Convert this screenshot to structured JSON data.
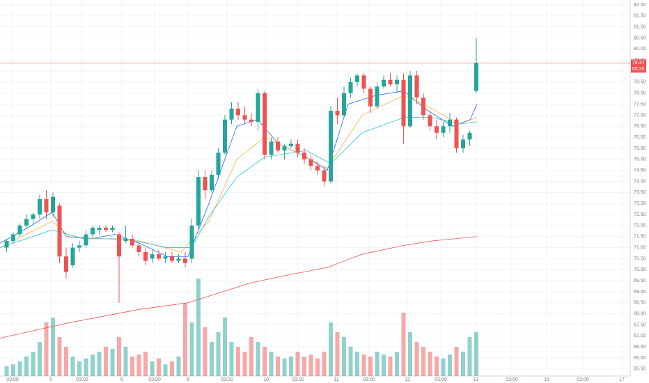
{
  "chart_data": {
    "type": "candlestick",
    "xlim": [
      0,
      905
    ],
    "ylim": [
      65.18,
      82.22
    ],
    "yticks": [
      {
        "value": 82,
        "label": "82.00"
      },
      {
        "value": 81.5,
        "label": "81.50"
      },
      {
        "value": 81,
        "label": "81.00"
      },
      {
        "value": 80.5,
        "label": "80.50"
      },
      {
        "value": 80,
        "label": "80.00"
      },
      {
        "value": 79.5,
        "label": "79.50"
      },
      {
        "value": 79,
        "label": "79.00"
      },
      {
        "value": 78.5,
        "label": "78.50"
      },
      {
        "value": 78,
        "label": "78.00"
      },
      {
        "value": 77.5,
        "label": "77.50"
      },
      {
        "value": 77,
        "label": "77.00"
      },
      {
        "value": 76.5,
        "label": "76.50"
      },
      {
        "value": 76,
        "label": "76.00"
      },
      {
        "value": 75.5,
        "label": "75.50"
      },
      {
        "value": 75,
        "label": "75.00"
      },
      {
        "value": 74.5,
        "label": "74.50"
      },
      {
        "value": 74,
        "label": "74.00"
      },
      {
        "value": 73.5,
        "label": "73.50"
      },
      {
        "value": 73,
        "label": "73.00"
      },
      {
        "value": 72.5,
        "label": "72.50"
      },
      {
        "value": 72,
        "label": "72.00"
      },
      {
        "value": 71.5,
        "label": "71.50"
      },
      {
        "value": 71,
        "label": "71.00"
      },
      {
        "value": 70.5,
        "label": "70.50"
      },
      {
        "value": 70,
        "label": "70.00"
      },
      {
        "value": 69.5,
        "label": "69.50"
      },
      {
        "value": 69,
        "label": "69.00"
      },
      {
        "value": 68.5,
        "label": "68.50"
      },
      {
        "value": 68,
        "label": "68.00"
      },
      {
        "value": 67.5,
        "label": "67.50"
      },
      {
        "value": 67,
        "label": "67.00"
      },
      {
        "value": 66.5,
        "label": "66.50"
      },
      {
        "value": 66,
        "label": "66.00"
      },
      {
        "value": 65.5,
        "label": "65.50"
      }
    ],
    "xticks": [
      {
        "value": 18,
        "label": "03:00"
      },
      {
        "value": 73,
        "label": "5"
      },
      {
        "value": 118,
        "label": "03:00"
      },
      {
        "value": 175,
        "label": "6"
      },
      {
        "value": 222,
        "label": "03:00"
      },
      {
        "value": 270,
        "label": "8"
      },
      {
        "value": 326,
        "label": "03:00"
      },
      {
        "value": 382,
        "label": "10"
      },
      {
        "value": 428,
        "label": "03:00"
      },
      {
        "value": 483,
        "label": "11"
      },
      {
        "value": 530,
        "label": "03:00"
      },
      {
        "value": 585,
        "label": "12"
      },
      {
        "value": 633,
        "label": "03:00"
      },
      {
        "value": 683,
        "label": "13"
      },
      {
        "value": 735,
        "label": "03:00"
      },
      {
        "value": 785,
        "label": "15"
      },
      {
        "value": 837,
        "label": "03:00"
      },
      {
        "value": 893,
        "label": "17"
      }
    ],
    "grid": true,
    "up_color": "#26a69a",
    "down_color": "#ef5350",
    "volume_lim": [
      0,
      100
    ],
    "x": [
      9.5,
      19,
      28.5,
      38,
      47.5,
      57,
      66.5,
      76,
      85.5,
      95,
      104.5,
      114,
      123.5,
      133,
      142.5,
      152,
      161.5,
      171,
      180.5,
      190,
      199.5,
      209,
      218.5,
      228,
      237.5,
      247,
      256.5,
      266,
      275.5,
      285,
      294.5,
      304,
      313.5,
      323,
      332.5,
      342,
      351.5,
      361,
      370.5,
      380,
      389.5,
      399,
      408.5,
      418,
      427.5,
      437,
      446.5,
      456,
      465.5,
      475,
      484.5,
      494,
      503.5,
      513,
      522.5,
      532,
      541.5,
      551,
      560.5,
      570,
      579.5,
      589,
      598.5,
      608,
      617.5,
      627,
      636.5,
      646,
      655.5,
      665,
      674.5,
      684
    ],
    "open": [
      71.0,
      71.3,
      71.6,
      72.0,
      72.3,
      72.5,
      73.2,
      72.6,
      72.9,
      70.6,
      70.2,
      71.0,
      71.1,
      71.6,
      71.8,
      71.9,
      71.8,
      71.6,
      71.3,
      71.4,
      71.1,
      70.8,
      70.5,
      70.7,
      70.5,
      70.6,
      70.4,
      70.5,
      70.5,
      72.0,
      74.2,
      73.6,
      74.3,
      75.3,
      76.8,
      77.3,
      77.0,
      76.8,
      76.7,
      78.0,
      75.2,
      75.8,
      75.4,
      75.6,
      75.7,
      75.3,
      75.0,
      74.7,
      74.5,
      74.0,
      77.2,
      77.0,
      78.0,
      78.5,
      78.8,
      78.2,
      77.4,
      78.3,
      78.6,
      78.4,
      78.6,
      76.5,
      78.8,
      77.8,
      77.0,
      76.5,
      76.2,
      76.5,
      76.8,
      75.5,
      75.9,
      78.1
    ],
    "high": [
      71.4,
      71.7,
      72.1,
      72.5,
      72.6,
      73.4,
      73.6,
      73.5,
      73.0,
      71.0,
      71.2,
      71.3,
      71.8,
      72.0,
      72.0,
      72.0,
      72.0,
      71.7,
      72.0,
      71.6,
      71.2,
      71.0,
      70.9,
      70.9,
      70.8,
      70.8,
      70.7,
      70.8,
      72.3,
      74.5,
      74.5,
      74.5,
      75.5,
      77.0,
      77.6,
      77.6,
      77.4,
      77.1,
      78.2,
      78.1,
      76.0,
      76.0,
      75.7,
      75.9,
      75.9,
      75.5,
      75.2,
      74.9,
      74.7,
      77.4,
      77.8,
      78.3,
      78.7,
      78.9,
      78.9,
      78.3,
      78.5,
      78.8,
      78.9,
      78.8,
      78.9,
      79.0,
      79.0,
      78.0,
      77.2,
      76.8,
      76.7,
      77.1,
      76.9,
      76.1,
      76.3,
      80.5
    ],
    "low": [
      70.8,
      71.2,
      71.5,
      71.9,
      72.0,
      72.3,
      72.3,
      72.4,
      70.3,
      69.6,
      70.1,
      70.8,
      71.0,
      71.5,
      71.6,
      71.7,
      71.7,
      68.5,
      71.2,
      71.0,
      70.6,
      70.2,
      70.3,
      70.4,
      70.3,
      70.3,
      70.3,
      70.1,
      70.3,
      71.8,
      73.2,
      73.5,
      74.1,
      75.2,
      76.6,
      76.8,
      76.6,
      76.5,
      76.3,
      75.0,
      75.0,
      75.3,
      75.0,
      75.5,
      75.1,
      74.8,
      74.5,
      74.3,
      73.8,
      73.9,
      76.6,
      76.9,
      77.8,
      78.3,
      78.0,
      77.1,
      77.3,
      78.2,
      78.3,
      78.0,
      75.7,
      76.4,
      77.5,
      76.8,
      76.3,
      75.9,
      76.0,
      76.2,
      75.3,
      75.3,
      75.6,
      78.0
    ],
    "close": [
      71.3,
      71.6,
      72.0,
      72.3,
      72.5,
      73.2,
      72.6,
      73.3,
      70.6,
      69.9,
      71.0,
      71.1,
      71.6,
      71.9,
      71.9,
      71.8,
      71.9,
      70.6,
      71.4,
      71.1,
      70.8,
      70.4,
      70.7,
      70.5,
      70.6,
      70.4,
      70.5,
      70.3,
      72.0,
      74.2,
      73.6,
      74.3,
      75.3,
      76.8,
      77.3,
      77.0,
      76.8,
      76.7,
      78.0,
      75.2,
      75.8,
      75.4,
      75.6,
      75.7,
      75.3,
      75.0,
      74.7,
      74.5,
      74.0,
      77.2,
      77.0,
      78.0,
      78.5,
      78.8,
      78.2,
      77.4,
      78.3,
      78.6,
      78.4,
      78.6,
      76.5,
      78.8,
      77.8,
      77.0,
      76.5,
      76.2,
      76.5,
      76.8,
      75.5,
      75.9,
      76.2,
      79.37
    ],
    "volume": [
      10,
      12,
      15,
      20,
      25,
      35,
      55,
      60,
      40,
      30,
      20,
      15,
      18,
      22,
      25,
      30,
      28,
      40,
      30,
      20,
      22,
      25,
      15,
      18,
      12,
      15,
      20,
      75,
      55,
      100,
      50,
      35,
      45,
      60,
      35,
      30,
      25,
      40,
      35,
      30,
      25,
      20,
      18,
      20,
      25,
      20,
      22,
      18,
      25,
      55,
      45,
      40,
      30,
      25,
      22,
      20,
      25,
      22,
      20,
      25,
      65,
      45,
      35,
      30,
      25,
      20,
      18,
      22,
      30,
      25,
      40,
      45
    ],
    "series": [
      {
        "color": "#2962ff",
        "x": [
          0,
          40,
          75,
          95,
          130,
          165,
          200,
          240,
          270,
          300,
          340,
          370,
          400,
          440,
          470,
          500,
          540,
          580,
          610,
          650,
          675,
          685
        ],
        "values": [
          71.2,
          71.9,
          72.6,
          71.5,
          71.4,
          71.6,
          71.2,
          70.6,
          70.6,
          73.0,
          76.5,
          76.8,
          75.7,
          75.1,
          74.5,
          77.5,
          77.9,
          78.1,
          77.3,
          76.5,
          76.8,
          77.5
        ]
      },
      {
        "color": "#f5b041",
        "x": [
          0,
          75,
          100,
          150,
          200,
          260,
          300,
          340,
          380,
          420,
          470,
          520,
          580,
          620,
          660,
          685
        ],
        "values": [
          71.0,
          72.2,
          71.5,
          71.4,
          71.3,
          70.8,
          72.2,
          75.0,
          76.0,
          75.4,
          74.6,
          77.0,
          77.9,
          77.3,
          76.6,
          76.9
        ]
      },
      {
        "color": "#26c6da",
        "x": [
          0,
          75,
          120,
          180,
          240,
          275,
          300,
          340,
          380,
          440,
          475,
          520,
          580,
          620,
          660,
          685
        ],
        "values": [
          71.0,
          71.8,
          71.4,
          71.4,
          71.0,
          71.0,
          72.4,
          74.2,
          75.1,
          75.4,
          74.8,
          76.2,
          76.9,
          76.9,
          76.6,
          76.7
        ]
      },
      {
        "color": "#ef5350",
        "x": [
          0,
          100,
          200,
          270,
          310,
          360,
          420,
          470,
          520,
          580,
          620,
          685
        ],
        "values": [
          66.9,
          67.6,
          68.2,
          68.5,
          68.9,
          69.4,
          69.8,
          70.1,
          70.7,
          71.1,
          71.3,
          71.5
        ]
      }
    ],
    "price_line": {
      "value": 79.37,
      "label": "79.37",
      "countdown": "05:25",
      "color": "#ef5350"
    }
  }
}
